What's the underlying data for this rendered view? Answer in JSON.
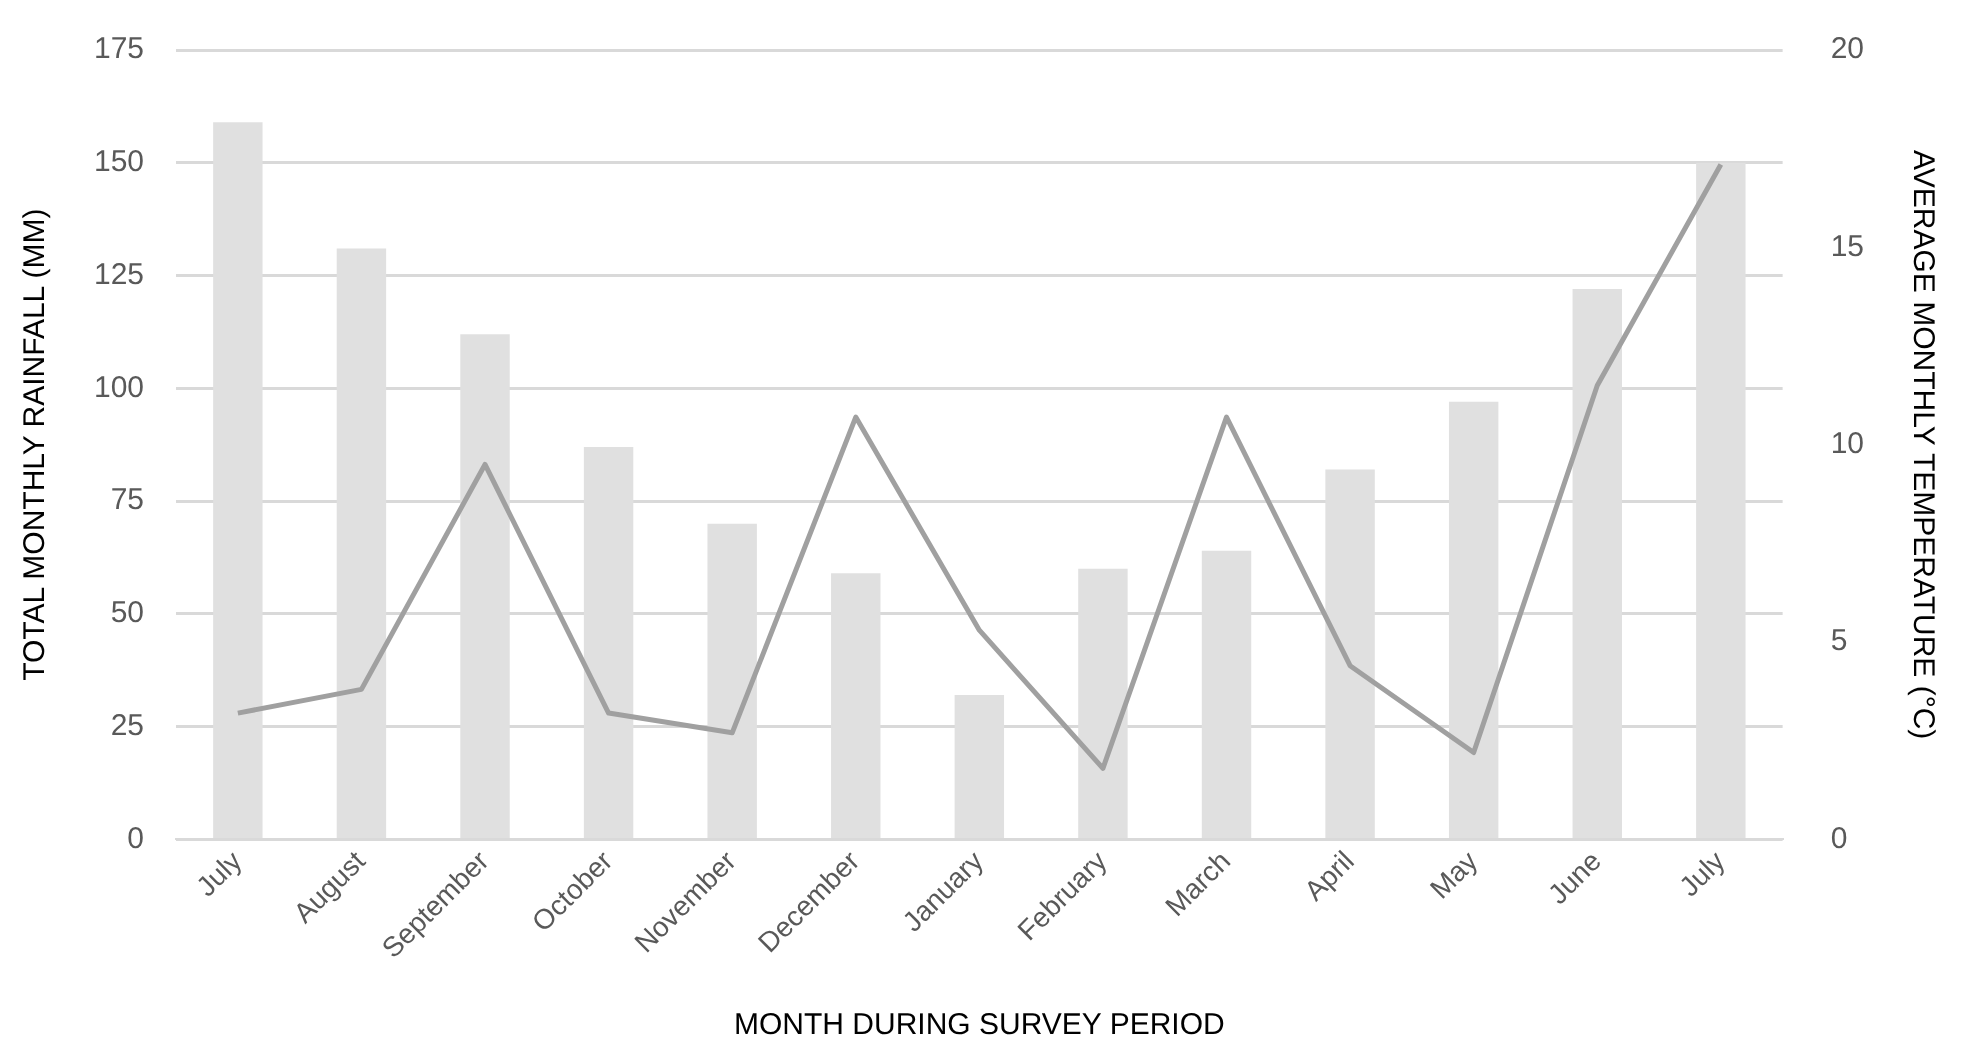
{
  "chart_data": {
    "type": "bar",
    "xlabel": "MONTH DURING SURVEY PERIOD",
    "ylabel": "TOTAL MONTHLY RAINFALL (MM)",
    "y2label": "AVERAGE MONTHLY TEMPERATURE (°C)",
    "categories": [
      "July",
      "August",
      "September",
      "October",
      "November",
      "December",
      "January",
      "February",
      "March",
      "April",
      "May",
      "June",
      "July"
    ],
    "series": [
      {
        "color": "#e0e0e0",
        "values": [
          159,
          131,
          112,
          87,
          70,
          59,
          32,
          60,
          64,
          82,
          97,
          122,
          150
        ]
      },
      {
        "type": "line",
        "axis": "y2",
        "color": "#a0a0a0",
        "values": [
          3.2,
          3.8,
          9.5,
          3.2,
          2.7,
          10.7,
          5.3,
          1.8,
          10.7,
          4.4,
          2.2,
          11.5,
          17.1
        ]
      }
    ],
    "ylim": [
      0,
      175
    ],
    "yticks": [
      0,
      25,
      50,
      75,
      100,
      125,
      150,
      175
    ],
    "y2lim": [
      0,
      20
    ],
    "y2ticks": [
      0,
      5,
      10,
      15,
      20
    ],
    "grid": "y",
    "legend": false,
    "marker": "none"
  }
}
